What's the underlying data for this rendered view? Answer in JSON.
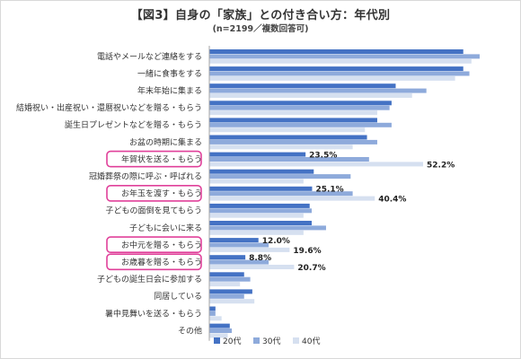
{
  "title": "【図3】自身の「家族」との付き合い方：年代別",
  "subtitle": "(n=2199／複数回答可)",
  "colors": {
    "s20": "#4472c4",
    "s30": "#8eaadb",
    "s40": "#d6e0f0",
    "highlight": "#e0409a",
    "axis": "#a6a6a6"
  },
  "chart_data": {
    "type": "bar",
    "orientation": "horizontal",
    "xlim": [
      0,
      70
    ],
    "grid": false,
    "legend_position": "bottom",
    "categories": [
      "電話やメールなど連絡をする",
      "一緒に食事をする",
      "年末年始に集まる",
      "結婚祝い・出産祝い・還暦祝いなどを贈る・もらう",
      "誕生日プレゼントなどを贈る・もらう",
      "お盆の時期に集まる",
      "年賀状を送る・もらう",
      "冠婚葬祭の際に呼ぶ・呼ばれる",
      "お年玉を渡す・もらう",
      "子どもの面倒を見てもらう",
      "子どもに会いに来る",
      "お中元を贈る・もらう",
      "お歳暮を贈る・もらう",
      "子どもの誕生日会に参加する",
      "同居している",
      "暑中見舞いを送る・もらう",
      "その他"
    ],
    "highlighted": [
      "年賀状を送る・もらう",
      "お年玉を渡す・もらう",
      "お中元を贈る・もらう",
      "お歳暮を贈る・もらう"
    ],
    "series": [
      {
        "name": "20代",
        "values": [
          62.0,
          62.0,
          45.5,
          44.5,
          41.0,
          38.5,
          23.5,
          25.5,
          25.1,
          24.5,
          25.0,
          12.0,
          8.8,
          8.5,
          10.5,
          1.5,
          5.0
        ]
      },
      {
        "name": "30代",
        "values": [
          66.0,
          63.5,
          53.0,
          44.0,
          44.5,
          41.0,
          39.0,
          34.5,
          35.0,
          25.0,
          28.5,
          14.5,
          14.5,
          10.0,
          8.5,
          1.5,
          5.5
        ]
      },
      {
        "name": "40代",
        "values": [
          64.0,
          60.0,
          49.5,
          41.0,
          38.0,
          35.0,
          52.2,
          23.0,
          40.4,
          23.0,
          23.0,
          19.6,
          20.7,
          7.5,
          11.0,
          3.0,
          4.5
        ]
      }
    ],
    "data_labels": [
      {
        "category": "年賀状を送る・もらう",
        "series": "20代",
        "text": "23.5%"
      },
      {
        "category": "年賀状を送る・もらう",
        "series": "40代",
        "text": "52.2%"
      },
      {
        "category": "お年玉を渡す・もらう",
        "series": "20代",
        "text": "25.1%"
      },
      {
        "category": "お年玉を渡す・もらう",
        "series": "40代",
        "text": "40.4%"
      },
      {
        "category": "お中元を贈る・もらう",
        "series": "20代",
        "text": "12.0%"
      },
      {
        "category": "お中元を贈る・もらう",
        "series": "40代",
        "text": "19.6%"
      },
      {
        "category": "お歳暮を贈る・もらう",
        "series": "20代",
        "text": "8.8%"
      },
      {
        "category": "お歳暮を贈る・もらう",
        "series": "40代",
        "text": "20.7%"
      }
    ]
  }
}
